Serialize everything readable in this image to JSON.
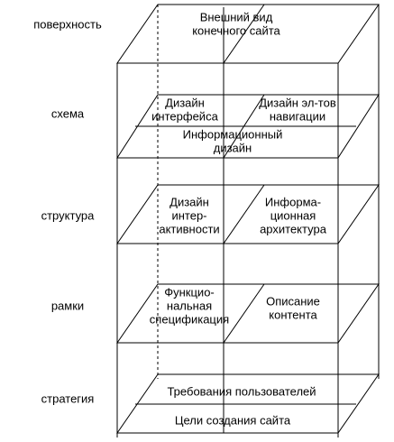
{
  "levels": [
    "поверхность",
    "схема",
    "структура",
    "рамки",
    "стратегия"
  ],
  "boxes": [
    {
      "lines": [
        "Внешний вид",
        "конечного сайта"
      ]
    },
    {
      "lines": [
        "Дизайн",
        "интерфейса"
      ]
    },
    {
      "lines": [
        "Дизайн эл-тов",
        "навигации"
      ]
    },
    {
      "lines": [
        "Информационный",
        "дизайн"
      ]
    },
    {
      "lines": [
        "Дизайн",
        "интер-",
        "активности"
      ]
    },
    {
      "lines": [
        "Информа-",
        "ционная",
        "архитектура"
      ]
    },
    {
      "lines": [
        "Функцио-",
        "нальная",
        "спецификация"
      ]
    },
    {
      "lines": [
        "Описание",
        "контента"
      ]
    },
    {
      "lines": [
        "Требования пользователей"
      ]
    },
    {
      "lines": [
        "Цели создания сайта"
      ]
    }
  ]
}
